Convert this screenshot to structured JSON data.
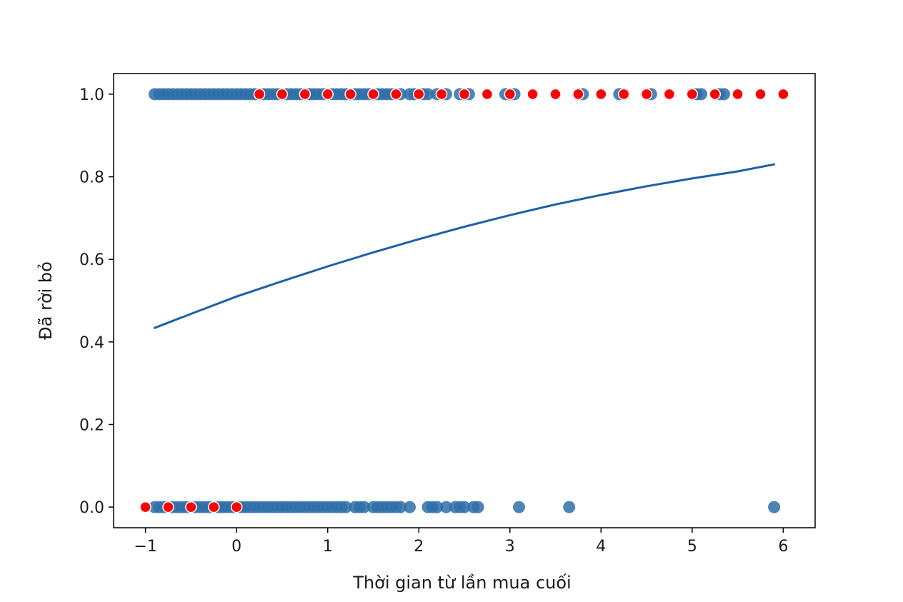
{
  "chart_data": {
    "type": "scatter",
    "title": "",
    "xlabel": "Thời gian từ lần mua cuối",
    "ylabel": "Đã rời bỏ",
    "xlim": [
      -1.35,
      6.35
    ],
    "ylim": [
      -0.05,
      1.05
    ],
    "xticks": [
      -1,
      0,
      1,
      2,
      3,
      4,
      5,
      6
    ],
    "xtick_labels": [
      "−1",
      "0",
      "1",
      "2",
      "3",
      "4",
      "5",
      "6"
    ],
    "yticks": [
      0.0,
      0.2,
      0.4,
      0.6,
      0.8,
      1.0
    ],
    "ytick_labels": [
      "0.0",
      "0.2",
      "0.4",
      "0.6",
      "0.8",
      "1.0"
    ],
    "grid": false,
    "colors": {
      "observed": "#2f6ea8",
      "fit": "#1f5fa8",
      "predicted": "#ff0000",
      "predicted_edge": "#ffffff",
      "axes": "#000000"
    },
    "series": [
      {
        "kind": "scatter",
        "y": 1.0,
        "x": [
          -0.9,
          -0.85,
          -0.8,
          -0.75,
          -0.7,
          -0.65,
          -0.6,
          -0.55,
          -0.5,
          -0.45,
          -0.4,
          -0.35,
          -0.3,
          -0.25,
          -0.2,
          -0.15,
          -0.1,
          -0.05,
          0.0,
          0.05,
          0.1,
          0.15,
          0.2,
          0.25,
          0.3,
          0.35,
          0.4,
          0.45,
          0.5,
          0.55,
          0.6,
          0.65,
          0.7,
          0.75,
          0.8,
          0.85,
          0.9,
          0.95,
          1.0,
          1.05,
          1.1,
          1.15,
          1.2,
          1.25,
          1.3,
          1.35,
          1.4,
          1.45,
          1.5,
          1.55,
          1.6,
          1.65,
          1.7,
          1.75,
          1.8,
          1.9,
          1.95,
          2.05,
          2.1,
          2.2,
          2.3,
          2.45,
          2.5,
          2.55,
          2.95,
          3.0,
          3.05,
          3.75,
          3.8,
          4.2,
          4.25,
          4.5,
          4.55,
          5.0,
          5.05,
          5.1,
          5.3,
          5.35
        ]
      },
      {
        "kind": "scatter",
        "y": 0.0,
        "x": [
          -0.9,
          -0.85,
          -0.8,
          -0.75,
          -0.7,
          -0.65,
          -0.6,
          -0.55,
          -0.5,
          -0.45,
          -0.4,
          -0.35,
          -0.3,
          -0.25,
          -0.2,
          -0.15,
          -0.1,
          -0.05,
          0.0,
          0.05,
          0.1,
          0.15,
          0.2,
          0.25,
          0.3,
          0.35,
          0.4,
          0.45,
          0.5,
          0.55,
          0.6,
          0.65,
          0.7,
          0.75,
          0.8,
          0.85,
          0.9,
          0.95,
          1.0,
          1.05,
          1.1,
          1.15,
          1.2,
          1.3,
          1.35,
          1.4,
          1.5,
          1.55,
          1.6,
          1.65,
          1.7,
          1.75,
          1.8,
          1.9,
          2.1,
          2.15,
          2.2,
          2.3,
          2.4,
          2.45,
          2.5,
          2.6,
          2.65,
          3.1,
          3.65,
          5.9
        ]
      },
      {
        "kind": "line",
        "x": [
          -0.9,
          -0.5,
          0.0,
          0.5,
          1.0,
          1.5,
          2.0,
          2.5,
          3.0,
          3.5,
          4.0,
          4.5,
          5.0,
          5.5,
          5.9
        ],
        "y": [
          0.434,
          0.468,
          0.51,
          0.547,
          0.583,
          0.617,
          0.649,
          0.679,
          0.707,
          0.733,
          0.756,
          0.777,
          0.796,
          0.813,
          0.83
        ]
      },
      {
        "kind": "scatter",
        "y_at_x": [
          [
            -1.0,
            0.0
          ],
          [
            -0.75,
            0.0
          ],
          [
            -0.5,
            0.0
          ],
          [
            -0.25,
            0.0
          ],
          [
            0.0,
            0.0
          ],
          [
            0.25,
            1.0
          ],
          [
            0.5,
            1.0
          ],
          [
            0.75,
            1.0
          ],
          [
            1.0,
            1.0
          ],
          [
            1.25,
            1.0
          ],
          [
            1.5,
            1.0
          ],
          [
            1.75,
            1.0
          ],
          [
            2.0,
            1.0
          ],
          [
            2.25,
            1.0
          ],
          [
            2.5,
            1.0
          ],
          [
            2.75,
            1.0
          ],
          [
            3.0,
            1.0
          ],
          [
            3.25,
            1.0
          ],
          [
            3.5,
            1.0
          ],
          [
            3.75,
            1.0
          ],
          [
            4.0,
            1.0
          ],
          [
            4.25,
            1.0
          ],
          [
            4.5,
            1.0
          ],
          [
            4.75,
            1.0
          ],
          [
            5.0,
            1.0
          ],
          [
            5.25,
            1.0
          ],
          [
            5.5,
            1.0
          ],
          [
            5.75,
            1.0
          ],
          [
            6.0,
            1.0
          ]
        ]
      }
    ]
  }
}
